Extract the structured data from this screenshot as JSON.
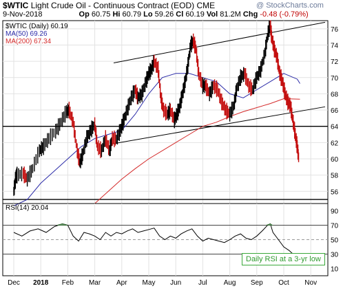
{
  "header": {
    "symbol": "$WTIC",
    "name": "Light Crude Oil - Continuous Contract (EOD)",
    "exchange": "CME",
    "watermark": "@ StockCharts.com",
    "date": "9-Nov-2018",
    "open_label": "Op",
    "open": "60.75",
    "high_label": "Hi",
    "high": "60.79",
    "low_label": "Lo",
    "low": "59.26",
    "close_label": "Cl",
    "close": "60.19",
    "vol_label": "Vol",
    "vol": "81.2M",
    "chg_label": "Chg",
    "chg": "-0.48 (-0.79%)"
  },
  "legend": {
    "main": "$WTIC (Daily) 60.19",
    "ma50": "MA(50) 69.26",
    "ma200": "MA(200) 67.34",
    "rsi": "RSI(14) 20.04"
  },
  "annotation": {
    "text": "Daily RSI at a 3-yr low"
  },
  "colors": {
    "ma50": "#2b2ba8",
    "ma200": "#d42a2a",
    "price_up": "#000000",
    "price_down": "#c41010",
    "rsi_line": "#000000",
    "annotation_bg": "#ffffff",
    "annotation_border": "#3aa83a",
    "annotation_text": "#2e9a2e"
  },
  "chart_data": [
    {
      "type": "line",
      "title": "$WTIC (Daily)",
      "x_ticks": [
        "Dec",
        "2018",
        "Feb",
        "Mar",
        "Apr",
        "May",
        "Jun",
        "Jul",
        "Aug",
        "Sep",
        "Oct",
        "Nov"
      ],
      "ylim": [
        54.5,
        77
      ],
      "y_ticks": [
        "56",
        "58",
        "60",
        "62",
        "64",
        "66",
        "68",
        "70",
        "72",
        "74",
        "76"
      ],
      "series": [
        {
          "name": "$WTIC",
          "points": [
            [
              0,
              56.0
            ],
            [
              0.08,
              57.8
            ],
            [
              0.12,
              58.0
            ],
            [
              0.35,
              58.2
            ],
            [
              0.5,
              57.5
            ],
            [
              0.7,
              58.8
            ],
            [
              0.95,
              61.0
            ],
            [
              1.1,
              61.5
            ],
            [
              1.3,
              62.5
            ],
            [
              1.55,
              63.4
            ],
            [
              1.75,
              64.5
            ],
            [
              1.95,
              65.8
            ],
            [
              2.05,
              66.0
            ],
            [
              2.2,
              64.5
            ],
            [
              2.35,
              61.0
            ],
            [
              2.45,
              59.5
            ],
            [
              2.55,
              60.5
            ],
            [
              2.7,
              62.5
            ],
            [
              2.85,
              63.5
            ],
            [
              3.0,
              64.2
            ],
            [
              3.1,
              61.5
            ],
            [
              3.25,
              61.0
            ],
            [
              3.4,
              62.5
            ],
            [
              3.55,
              61.0
            ],
            [
              3.65,
              62.5
            ],
            [
              3.8,
              62.4
            ],
            [
              3.95,
              63.5
            ],
            [
              4.05,
              64.5
            ],
            [
              4.2,
              66.0
            ],
            [
              4.35,
              67.5
            ],
            [
              4.5,
              68.5
            ],
            [
              4.6,
              67.5
            ],
            [
              4.75,
              68.0
            ],
            [
              4.9,
              69.5
            ],
            [
              5.0,
              70.5
            ],
            [
              5.1,
              71.0
            ],
            [
              5.2,
              72.0
            ],
            [
              5.35,
              71.0
            ],
            [
              5.45,
              67.5
            ],
            [
              5.55,
              66.0
            ],
            [
              5.7,
              65.5
            ],
            [
              5.8,
              66.0
            ],
            [
              5.95,
              64.8
            ],
            [
              6.05,
              65.5
            ],
            [
              6.15,
              66.5
            ],
            [
              6.25,
              68.0
            ],
            [
              6.35,
              69.5
            ],
            [
              6.45,
              71.5
            ],
            [
              6.55,
              74.0
            ],
            [
              6.65,
              74.5
            ],
            [
              6.75,
              73.5
            ],
            [
              6.85,
              70.5
            ],
            [
              7.0,
              69.0
            ],
            [
              7.1,
              69.0
            ],
            [
              7.25,
              68.0
            ],
            [
              7.4,
              69.0
            ],
            [
              7.55,
              68.5
            ],
            [
              7.7,
              67.0
            ],
            [
              7.85,
              66.0
            ],
            [
              8.0,
              65.5
            ],
            [
              8.15,
              66.5
            ],
            [
              8.25,
              68.5
            ],
            [
              8.4,
              70.0
            ],
            [
              8.55,
              70.5
            ],
            [
              8.7,
              69.0
            ],
            [
              8.85,
              68.5
            ],
            [
              9.0,
              70.0
            ],
            [
              9.15,
              71.0
            ],
            [
              9.3,
              73.0
            ],
            [
              9.42,
              75.5
            ],
            [
              9.5,
              76.5
            ],
            [
              9.55,
              75.0
            ],
            [
              9.65,
              73.5
            ],
            [
              9.75,
              72.5
            ],
            [
              9.85,
              70.5
            ],
            [
              9.95,
              69.5
            ],
            [
              10.05,
              68.0
            ],
            [
              10.15,
              67.0
            ],
            [
              10.25,
              66.5
            ],
            [
              10.35,
              64.5
            ],
            [
              10.45,
              62.5
            ],
            [
              10.5,
              61.5
            ],
            [
              10.55,
              60.19
            ]
          ]
        },
        {
          "name": "MA(50)",
          "points": [
            [
              0,
              54.2
            ],
            [
              0.5,
              55.0
            ],
            [
              1.0,
              57.0
            ],
            [
              1.5,
              58.5
            ],
            [
              2.0,
              60.0
            ],
            [
              2.5,
              61.5
            ],
            [
              3.0,
              62.5
            ],
            [
              3.5,
              63.0
            ],
            [
              4.0,
              63.5
            ],
            [
              4.5,
              65.5
            ],
            [
              5.0,
              68.0
            ],
            [
              5.5,
              70.0
            ],
            [
              6.0,
              70.5
            ],
            [
              6.5,
              70.5
            ],
            [
              7.0,
              70.0
            ],
            [
              7.5,
              69.5
            ],
            [
              8.0,
              68.0
            ],
            [
              8.5,
              67.5
            ],
            [
              9.0,
              68.5
            ],
            [
              9.5,
              69.5
            ],
            [
              10.0,
              70.5
            ],
            [
              10.5,
              69.8
            ],
            [
              10.6,
              69.26
            ]
          ]
        },
        {
          "name": "MA(200)",
          "points": [
            [
              3.0,
              54.5
            ],
            [
              3.5,
              56.0
            ],
            [
              4.0,
              57.5
            ],
            [
              4.5,
              58.8
            ],
            [
              5.0,
              60.0
            ],
            [
              5.5,
              61.0
            ],
            [
              6.0,
              62.0
            ],
            [
              6.5,
              63.0
            ],
            [
              7.0,
              64.0
            ],
            [
              7.5,
              64.5
            ],
            [
              8.0,
              65.2
            ],
            [
              8.5,
              65.8
            ],
            [
              9.0,
              66.3
            ],
            [
              9.5,
              66.8
            ],
            [
              10.0,
              67.4
            ],
            [
              10.6,
              67.34
            ]
          ]
        }
      ]
    },
    {
      "type": "line",
      "title": "RSI(14)",
      "x_ticks": [
        "Dec",
        "2018",
        "Feb",
        "Mar",
        "Apr",
        "May",
        "Jun",
        "Jul",
        "Aug",
        "Sep",
        "Oct",
        "Nov"
      ],
      "ylim": [
        0,
        100
      ],
      "y_ticks": [
        "10",
        "30",
        "50",
        "70",
        "90"
      ],
      "series": [
        {
          "name": "RSI(14)",
          "points": [
            [
              0,
              60
            ],
            [
              0.3,
              55
            ],
            [
              0.6,
              62
            ],
            [
              0.9,
              65
            ],
            [
              1.2,
              60
            ],
            [
              1.5,
              68
            ],
            [
              1.8,
              72
            ],
            [
              2.0,
              70
            ],
            [
              2.2,
              55
            ],
            [
              2.4,
              48
            ],
            [
              2.6,
              60
            ],
            [
              2.8,
              58
            ],
            [
              3.0,
              55
            ],
            [
              3.2,
              50
            ],
            [
              3.4,
              60
            ],
            [
              3.6,
              55
            ],
            [
              3.8,
              60
            ],
            [
              4.0,
              58
            ],
            [
              4.2,
              62
            ],
            [
              4.4,
              65
            ],
            [
              4.6,
              60
            ],
            [
              4.8,
              62
            ],
            [
              5.0,
              64
            ],
            [
              5.2,
              66
            ],
            [
              5.4,
              55
            ],
            [
              5.6,
              50
            ],
            [
              5.8,
              55
            ],
            [
              6.0,
              52
            ],
            [
              6.2,
              58
            ],
            [
              6.4,
              62
            ],
            [
              6.6,
              65
            ],
            [
              6.8,
              55
            ],
            [
              7.0,
              48
            ],
            [
              7.2,
              52
            ],
            [
              7.4,
              50
            ],
            [
              7.6,
              48
            ],
            [
              7.8,
              46
            ],
            [
              8.0,
              50
            ],
            [
              8.2,
              55
            ],
            [
              8.4,
              58
            ],
            [
              8.6,
              52
            ],
            [
              8.8,
              50
            ],
            [
              9.0,
              55
            ],
            [
              9.2,
              62
            ],
            [
              9.4,
              70
            ],
            [
              9.5,
              72
            ],
            [
              9.6,
              60
            ],
            [
              9.8,
              50
            ],
            [
              10.0,
              40
            ],
            [
              10.2,
              35
            ],
            [
              10.4,
              28
            ],
            [
              10.55,
              20.04
            ]
          ]
        }
      ],
      "guides": [
        30,
        50,
        70
      ]
    }
  ]
}
